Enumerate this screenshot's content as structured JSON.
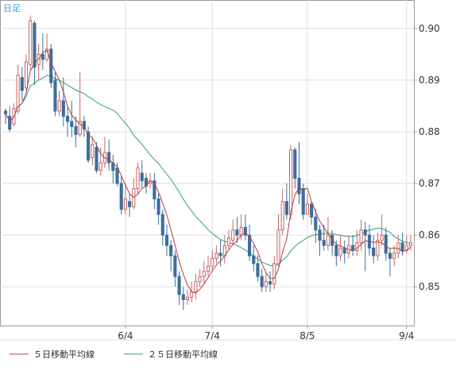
{
  "chart_data": {
    "type": "candlestick",
    "timeframe_label": "日足",
    "x_tick_labels": [
      "6/4",
      "7/4",
      "8/5",
      "9/4"
    ],
    "y_tick_labels": [
      "0.85",
      "0.86",
      "0.87",
      "0.88",
      "0.89",
      "0.90"
    ],
    "ylim": [
      0.8425,
      0.9055
    ],
    "grid": true,
    "legend_position": "bottom-left",
    "colors": {
      "up": "#c86464",
      "down": "#3d6e9e",
      "ma5": "#b04040",
      "ma25": "#2aa37a",
      "grid": "#dddddd",
      "axis": "#999999",
      "timeframe": "#3aa0d8"
    },
    "series": [
      {
        "name": "５日移動平均線",
        "color": "#b04040"
      },
      {
        "name": "２５日移動平均線",
        "color": "#2aa37a"
      }
    ],
    "candles": [
      [
        0.884,
        0.8835,
        0.8845,
        0.8815
      ],
      [
        0.883,
        0.8805,
        0.885,
        0.88
      ],
      [
        0.8815,
        0.8845,
        0.8855,
        0.881
      ],
      [
        0.884,
        0.891,
        0.893,
        0.8835
      ],
      [
        0.8905,
        0.888,
        0.8925,
        0.886
      ],
      [
        0.8885,
        0.8935,
        0.895,
        0.888
      ],
      [
        0.893,
        0.9015,
        0.9025,
        0.892
      ],
      [
        0.901,
        0.8925,
        0.9015,
        0.889
      ],
      [
        0.893,
        0.895,
        0.897,
        0.89
      ],
      [
        0.895,
        0.894,
        0.899,
        0.892
      ],
      [
        0.894,
        0.896,
        0.899,
        0.8935
      ],
      [
        0.896,
        0.8895,
        0.897,
        0.8885
      ],
      [
        0.89,
        0.884,
        0.8915,
        0.883
      ],
      [
        0.884,
        0.886,
        0.888,
        0.883
      ],
      [
        0.886,
        0.883,
        0.8905,
        0.881
      ],
      [
        0.883,
        0.882,
        0.885,
        0.879
      ],
      [
        0.882,
        0.881,
        0.886,
        0.879
      ],
      [
        0.881,
        0.8795,
        0.883,
        0.877
      ],
      [
        0.8795,
        0.882,
        0.8915,
        0.879
      ],
      [
        0.882,
        0.8805,
        0.883,
        0.879
      ],
      [
        0.88,
        0.8745,
        0.881,
        0.874
      ],
      [
        0.875,
        0.8775,
        0.879,
        0.8735
      ],
      [
        0.877,
        0.8725,
        0.878,
        0.872
      ],
      [
        0.8725,
        0.874,
        0.877,
        0.8715
      ],
      [
        0.874,
        0.876,
        0.879,
        0.873
      ],
      [
        0.876,
        0.874,
        0.8785,
        0.8725
      ],
      [
        0.874,
        0.8725,
        0.8755,
        0.87
      ],
      [
        0.873,
        0.87,
        0.874,
        0.8695
      ],
      [
        0.87,
        0.865,
        0.8715,
        0.864
      ],
      [
        0.865,
        0.867,
        0.87,
        0.864
      ],
      [
        0.8665,
        0.8655,
        0.868,
        0.8635
      ],
      [
        0.8655,
        0.869,
        0.871,
        0.865
      ],
      [
        0.869,
        0.873,
        0.874,
        0.868
      ],
      [
        0.872,
        0.8705,
        0.8745,
        0.869
      ],
      [
        0.871,
        0.8695,
        0.872,
        0.868
      ],
      [
        0.87,
        0.8705,
        0.872,
        0.869
      ],
      [
        0.8705,
        0.867,
        0.872,
        0.865
      ],
      [
        0.867,
        0.864,
        0.868,
        0.862
      ],
      [
        0.864,
        0.86,
        0.865,
        0.858
      ],
      [
        0.86,
        0.858,
        0.862,
        0.856
      ],
      [
        0.858,
        0.856,
        0.859,
        0.853
      ],
      [
        0.856,
        0.852,
        0.857,
        0.85
      ],
      [
        0.852,
        0.8485,
        0.853,
        0.8465
      ],
      [
        0.8485,
        0.8475,
        0.85,
        0.8455
      ],
      [
        0.8475,
        0.848,
        0.8495,
        0.8465
      ],
      [
        0.848,
        0.849,
        0.851,
        0.847
      ],
      [
        0.849,
        0.851,
        0.8525,
        0.8475
      ],
      [
        0.851,
        0.852,
        0.8535,
        0.85
      ],
      [
        0.852,
        0.853,
        0.855,
        0.8505
      ],
      [
        0.853,
        0.854,
        0.856,
        0.852
      ],
      [
        0.854,
        0.8555,
        0.857,
        0.853
      ],
      [
        0.8555,
        0.8565,
        0.858,
        0.8545
      ],
      [
        0.8565,
        0.856,
        0.859,
        0.854
      ],
      [
        0.856,
        0.858,
        0.86,
        0.8545
      ],
      [
        0.858,
        0.8595,
        0.861,
        0.857
      ],
      [
        0.859,
        0.861,
        0.863,
        0.858
      ],
      [
        0.861,
        0.86,
        0.8635,
        0.8585
      ],
      [
        0.86,
        0.8615,
        0.864,
        0.859
      ],
      [
        0.8615,
        0.86,
        0.864,
        0.859
      ],
      [
        0.86,
        0.856,
        0.862,
        0.855
      ],
      [
        0.856,
        0.8545,
        0.858,
        0.853
      ],
      [
        0.8545,
        0.852,
        0.856,
        0.851
      ],
      [
        0.852,
        0.85,
        0.8535,
        0.849
      ],
      [
        0.85,
        0.851,
        0.8525,
        0.849
      ],
      [
        0.851,
        0.8505,
        0.853,
        0.849
      ],
      [
        0.8505,
        0.8545,
        0.856,
        0.8495
      ],
      [
        0.8545,
        0.861,
        0.864,
        0.854
      ],
      [
        0.861,
        0.8665,
        0.869,
        0.86
      ],
      [
        0.8665,
        0.864,
        0.87,
        0.863
      ],
      [
        0.864,
        0.8765,
        0.8775,
        0.863
      ],
      [
        0.8765,
        0.871,
        0.877,
        0.869
      ],
      [
        0.871,
        0.868,
        0.878,
        0.866
      ],
      [
        0.869,
        0.864,
        0.87,
        0.863
      ],
      [
        0.864,
        0.866,
        0.868,
        0.864
      ],
      [
        0.866,
        0.8635,
        0.8665,
        0.862
      ],
      [
        0.8635,
        0.861,
        0.865,
        0.8585
      ],
      [
        0.861,
        0.859,
        0.862,
        0.856
      ],
      [
        0.859,
        0.858,
        0.862,
        0.857
      ],
      [
        0.858,
        0.86,
        0.8635,
        0.857
      ],
      [
        0.86,
        0.858,
        0.861,
        0.856
      ],
      [
        0.858,
        0.856,
        0.859,
        0.854
      ],
      [
        0.856,
        0.8575,
        0.86,
        0.855
      ],
      [
        0.8575,
        0.8565,
        0.859,
        0.8545
      ],
      [
        0.8565,
        0.858,
        0.86,
        0.8555
      ],
      [
        0.858,
        0.857,
        0.86,
        0.856
      ],
      [
        0.857,
        0.8585,
        0.861,
        0.856
      ],
      [
        0.8585,
        0.861,
        0.863,
        0.857
      ],
      [
        0.861,
        0.86,
        0.8625,
        0.853
      ],
      [
        0.86,
        0.8575,
        0.862,
        0.856
      ],
      [
        0.8575,
        0.856,
        0.86,
        0.8545
      ],
      [
        0.856,
        0.859,
        0.8605,
        0.855
      ],
      [
        0.859,
        0.86,
        0.864,
        0.858
      ],
      [
        0.86,
        0.8565,
        0.8615,
        0.855
      ],
      [
        0.8565,
        0.8555,
        0.8575,
        0.852
      ],
      [
        0.8555,
        0.8565,
        0.858,
        0.854
      ],
      [
        0.8565,
        0.8585,
        0.86,
        0.8555
      ],
      [
        0.8585,
        0.857,
        0.8605,
        0.856
      ],
      [
        0.857,
        0.858,
        0.86,
        0.8565
      ],
      [
        0.858,
        0.8585,
        0.86,
        0.857
      ]
    ]
  }
}
